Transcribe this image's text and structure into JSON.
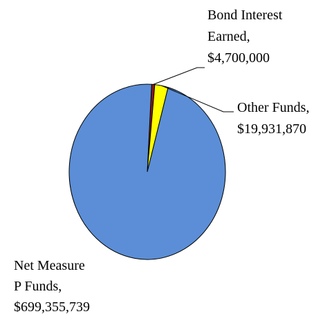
{
  "chart_data": {
    "type": "pie",
    "title": "",
    "slices": [
      {
        "name": "Net Measure P Funds",
        "value": 699355739,
        "label_lines": [
          "Net Measure",
          "P Funds,",
          "$699,355,739"
        ],
        "color": "#5B8ED6"
      },
      {
        "name": "Bond Interest Earned",
        "value": 4700000,
        "label_lines": [
          "Bond Interest",
          "Earned,",
          "$4,700,000"
        ],
        "color": "#8B1A1A"
      },
      {
        "name": "Other Funds",
        "value": 19931870,
        "label_lines": [
          "Other Funds,",
          "$19,931,870"
        ],
        "color": "#FFFF00"
      }
    ],
    "legend": "none",
    "data_labels": "outside with leader lines"
  }
}
